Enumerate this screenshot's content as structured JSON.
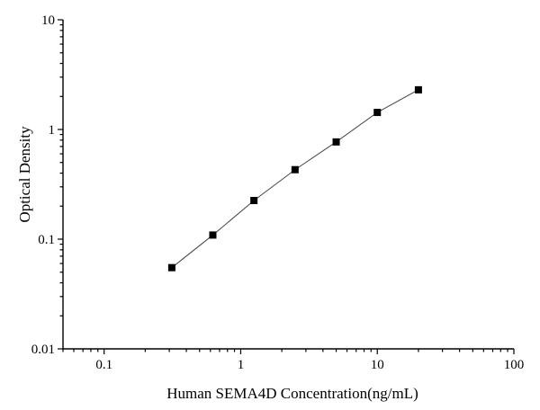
{
  "chart_data": {
    "type": "scatter",
    "title": "",
    "xlabel": "Human SEMA4D Concentration(ng/mL)",
    "ylabel": "Optical Density",
    "xscale": "log",
    "yscale": "log",
    "xlim": [
      0.05,
      100
    ],
    "ylim": [
      0.01,
      10
    ],
    "x_ticks": [
      "0.1",
      "1",
      "10",
      "100"
    ],
    "y_ticks": [
      "0.01",
      "0.1",
      "1",
      "10"
    ],
    "grid": false,
    "legend": "none",
    "series": [
      {
        "x": [
          0.313,
          0.625,
          1.25,
          2.5,
          5,
          10,
          20
        ],
        "y": [
          0.055,
          0.109,
          0.225,
          0.43,
          0.77,
          1.43,
          2.3
        ],
        "marker": "square",
        "fit_line": true
      }
    ]
  }
}
